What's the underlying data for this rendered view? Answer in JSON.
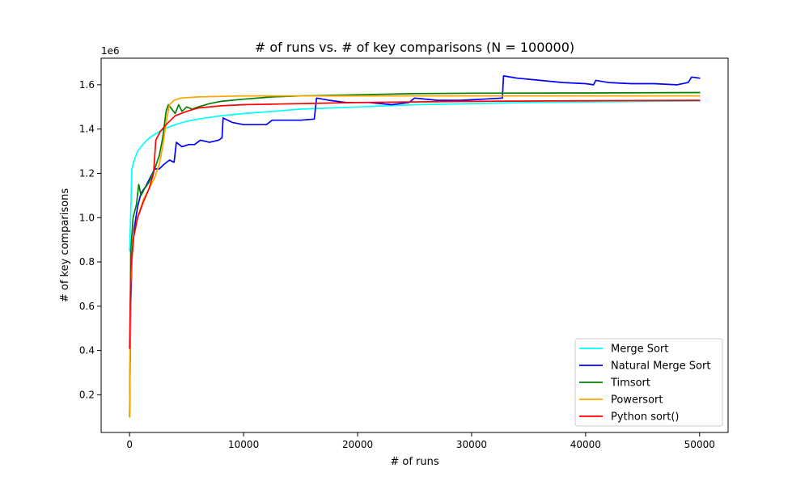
{
  "chart_data": {
    "type": "line",
    "title": "# of runs vs. # of key comparisons (N = 100000)",
    "xlabel": "# of runs",
    "ylabel": "# of key comparisons",
    "y_offset_label": "1e6",
    "xlim": [
      -2500,
      52500
    ],
    "ylim": [
      0.03,
      1.72
    ],
    "xticks": [
      0,
      10000,
      20000,
      30000,
      40000,
      50000
    ],
    "xtick_labels": [
      "0",
      "10000",
      "20000",
      "30000",
      "40000",
      "50000"
    ],
    "yticks": [
      0.2,
      0.4,
      0.6,
      0.8,
      1.0,
      1.2,
      1.4,
      1.6
    ],
    "ytick_labels": [
      "0.2",
      "0.4",
      "0.6",
      "0.8",
      "1.0",
      "1.2",
      "1.4",
      "1.6"
    ],
    "grid": false,
    "legend_position": "bottom-right",
    "series": [
      {
        "name": "Merge Sort",
        "color": "#00ffff",
        "points": [
          [
            1,
            0.85
          ],
          [
            100,
            1.02
          ],
          [
            200,
            1.22
          ],
          [
            400,
            1.26
          ],
          [
            700,
            1.3
          ],
          [
            1000,
            1.32
          ],
          [
            1500,
            1.35
          ],
          [
            2000,
            1.37
          ],
          [
            3000,
            1.4
          ],
          [
            4000,
            1.42
          ],
          [
            5000,
            1.435
          ],
          [
            6000,
            1.445
          ],
          [
            8000,
            1.46
          ],
          [
            10000,
            1.47
          ],
          [
            12500,
            1.48
          ],
          [
            15000,
            1.49
          ],
          [
            20000,
            1.5
          ],
          [
            25000,
            1.51
          ],
          [
            30000,
            1.515
          ],
          [
            35000,
            1.52
          ],
          [
            40000,
            1.522
          ],
          [
            45000,
            1.525
          ],
          [
            50000,
            1.527
          ]
        ]
      },
      {
        "name": "Natural Merge Sort",
        "color": "#0000ff",
        "points": [
          [
            1,
            0.1
          ],
          [
            100,
            0.6
          ],
          [
            200,
            0.8
          ],
          [
            400,
            0.95
          ],
          [
            700,
            1.05
          ],
          [
            1000,
            1.11
          ],
          [
            1400,
            1.14
          ],
          [
            1800,
            1.18
          ],
          [
            2200,
            1.22
          ],
          [
            2600,
            1.22
          ],
          [
            3000,
            1.24
          ],
          [
            3500,
            1.26
          ],
          [
            3900,
            1.25
          ],
          [
            4100,
            1.34
          ],
          [
            4600,
            1.32
          ],
          [
            5200,
            1.33
          ],
          [
            5700,
            1.33
          ],
          [
            6200,
            1.35
          ],
          [
            7000,
            1.34
          ],
          [
            7800,
            1.35
          ],
          [
            8100,
            1.36
          ],
          [
            8200,
            1.45
          ],
          [
            9000,
            1.43
          ],
          [
            10000,
            1.42
          ],
          [
            11000,
            1.42
          ],
          [
            12000,
            1.42
          ],
          [
            12500,
            1.44
          ],
          [
            14000,
            1.44
          ],
          [
            15000,
            1.44
          ],
          [
            16200,
            1.445
          ],
          [
            16400,
            1.54
          ],
          [
            17500,
            1.53
          ],
          [
            19000,
            1.52
          ],
          [
            21000,
            1.52
          ],
          [
            23000,
            1.51
          ],
          [
            24500,
            1.52
          ],
          [
            25000,
            1.54
          ],
          [
            27000,
            1.53
          ],
          [
            29000,
            1.53
          ],
          [
            31000,
            1.535
          ],
          [
            32700,
            1.54
          ],
          [
            32800,
            1.64
          ],
          [
            34000,
            1.63
          ],
          [
            36000,
            1.62
          ],
          [
            38000,
            1.61
          ],
          [
            40000,
            1.605
          ],
          [
            40700,
            1.6
          ],
          [
            40900,
            1.62
          ],
          [
            42000,
            1.61
          ],
          [
            44000,
            1.605
          ],
          [
            46000,
            1.605
          ],
          [
            48000,
            1.6
          ],
          [
            49000,
            1.61
          ],
          [
            49300,
            1.635
          ],
          [
            50000,
            1.63
          ]
        ]
      },
      {
        "name": "Timsort",
        "color": "#008000",
        "points": [
          [
            1,
            0.1
          ],
          [
            100,
            0.85
          ],
          [
            300,
            1.0
          ],
          [
            600,
            1.06
          ],
          [
            800,
            1.15
          ],
          [
            1000,
            1.1
          ],
          [
            1300,
            1.13
          ],
          [
            1700,
            1.16
          ],
          [
            2200,
            1.22
          ],
          [
            2600,
            1.28
          ],
          [
            2900,
            1.36
          ],
          [
            3200,
            1.48
          ],
          [
            3400,
            1.51
          ],
          [
            3700,
            1.49
          ],
          [
            4000,
            1.47
          ],
          [
            4300,
            1.51
          ],
          [
            4600,
            1.48
          ],
          [
            5000,
            1.5
          ],
          [
            5500,
            1.49
          ],
          [
            6000,
            1.5
          ],
          [
            7000,
            1.515
          ],
          [
            8000,
            1.525
          ],
          [
            10000,
            1.535
          ],
          [
            12500,
            1.545
          ],
          [
            15000,
            1.55
          ],
          [
            20000,
            1.555
          ],
          [
            25000,
            1.56
          ],
          [
            30000,
            1.562
          ],
          [
            40000,
            1.563
          ],
          [
            50000,
            1.565
          ]
        ]
      },
      {
        "name": "Powersort",
        "color": "#ffa500",
        "points": [
          [
            1,
            0.1
          ],
          [
            100,
            0.7
          ],
          [
            300,
            0.9
          ],
          [
            700,
            1.0
          ],
          [
            1200,
            1.08
          ],
          [
            1700,
            1.13
          ],
          [
            2200,
            1.18
          ],
          [
            2600,
            1.24
          ],
          [
            2900,
            1.32
          ],
          [
            3200,
            1.43
          ],
          [
            3500,
            1.51
          ],
          [
            3900,
            1.53
          ],
          [
            4500,
            1.54
          ],
          [
            6000,
            1.545
          ],
          [
            10000,
            1.55
          ],
          [
            20000,
            1.55
          ],
          [
            30000,
            1.55
          ],
          [
            40000,
            1.55
          ],
          [
            50000,
            1.55
          ]
        ]
      },
      {
        "name": "Python sort()",
        "color": "#ff0000",
        "points": [
          [
            1,
            0.41
          ],
          [
            100,
            0.75
          ],
          [
            300,
            0.9
          ],
          [
            700,
            1.0
          ],
          [
            1200,
            1.07
          ],
          [
            1700,
            1.13
          ],
          [
            2100,
            1.2
          ],
          [
            2300,
            1.35
          ],
          [
            2700,
            1.39
          ],
          [
            3200,
            1.42
          ],
          [
            4000,
            1.46
          ],
          [
            5000,
            1.48
          ],
          [
            6000,
            1.495
          ],
          [
            8000,
            1.505
          ],
          [
            10000,
            1.51
          ],
          [
            15000,
            1.515
          ],
          [
            20000,
            1.52
          ],
          [
            30000,
            1.525
          ],
          [
            40000,
            1.528
          ],
          [
            50000,
            1.53
          ]
        ]
      }
    ]
  }
}
